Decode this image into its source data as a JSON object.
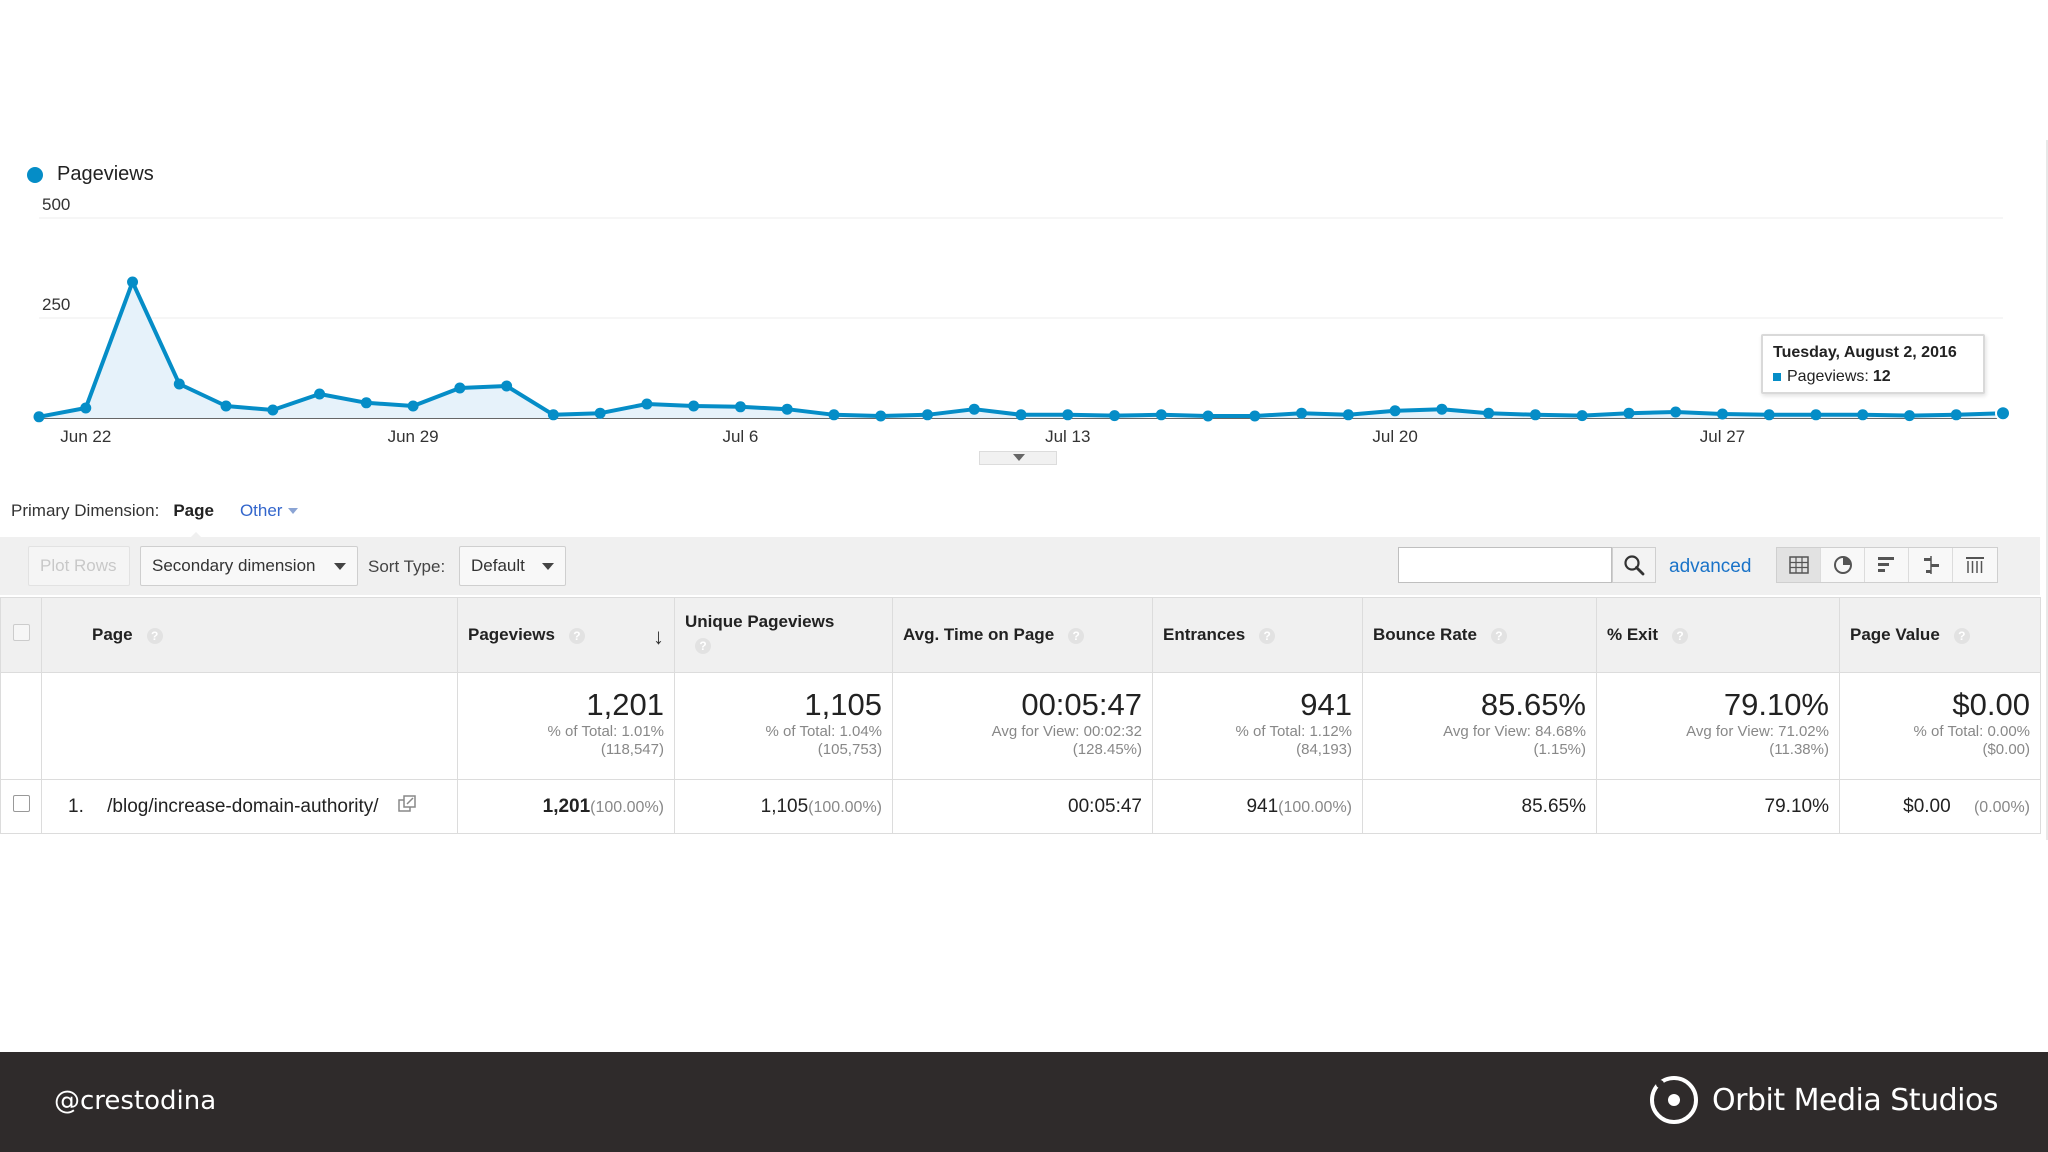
{
  "legend": {
    "series_name": "Pageviews",
    "color": "#058dc7"
  },
  "chart_data": {
    "type": "line",
    "title": "",
    "series": [
      {
        "name": "Pageviews",
        "values": [
          3,
          25,
          340,
          85,
          30,
          20,
          60,
          38,
          30,
          75,
          80,
          8,
          12,
          35,
          30,
          28,
          22,
          8,
          5,
          8,
          22,
          8,
          8,
          6,
          8,
          5,
          5,
          12,
          8,
          18,
          22,
          12,
          8,
          6,
          12,
          15,
          10,
          8,
          8,
          8,
          6,
          8,
          12
        ]
      }
    ],
    "x_start": "2016-06-21",
    "x_end": "2016-08-02",
    "x_tick_labels": [
      "Jun 22",
      "Jun 29",
      "Jul 6",
      "Jul 13",
      "Jul 20",
      "Jul 27"
    ],
    "y_tick_labels": [
      "500",
      "250"
    ],
    "ylim": [
      0,
      500
    ],
    "grid": true,
    "area_fill": true
  },
  "tooltip": {
    "date": "Tuesday, August 2, 2016",
    "label": "Pageviews:",
    "value": "12"
  },
  "primary_dimension": {
    "label": "Primary Dimension:",
    "selected": "Page",
    "other": "Other"
  },
  "toolbar": {
    "plot_rows": "Plot Rows",
    "secondary_dimension": "Secondary dimension",
    "sort_type_label": "Sort Type:",
    "sort_type_value": "Default",
    "search_value": "",
    "advanced": "advanced"
  },
  "table": {
    "columns": {
      "page": "Page",
      "pageviews": "Pageviews",
      "unique": "Unique Pageviews",
      "avg_time": "Avg. Time on Page",
      "entrances": "Entrances",
      "bounce": "Bounce Rate",
      "exit": "% Exit",
      "value": "Page Value"
    },
    "totals": {
      "pageviews": {
        "big": "1,201",
        "line1": "% of Total: 1.01%",
        "line2": "(118,547)"
      },
      "unique": {
        "big": "1,105",
        "line1": "% of Total: 1.04%",
        "line2": "(105,753)"
      },
      "avg_time": {
        "big": "00:05:47",
        "line1": "Avg for View: 00:02:32",
        "line2": "(128.45%)"
      },
      "entrances": {
        "big": "941",
        "line1": "% of Total: 1.12%",
        "line2": "(84,193)"
      },
      "bounce": {
        "big": "85.65%",
        "line1": "Avg for View: 84.68%",
        "line2": "(1.15%)"
      },
      "exit": {
        "big": "79.10%",
        "line1": "Avg for View: 71.02%",
        "line2": "(11.38%)"
      },
      "value": {
        "big": "$0.00",
        "line1": "% of Total: 0.00%",
        "line2": "($0.00)"
      }
    },
    "rows": [
      {
        "index": "1.",
        "page": "/blog/increase-domain-authority/",
        "pageviews": "1,201",
        "pageviews_pct": "(100.00%)",
        "unique": "1,105",
        "unique_pct": "(100.00%)",
        "avg_time": "00:05:47",
        "entrances": "941",
        "entrances_pct": "(100.00%)",
        "bounce": "85.65%",
        "exit": "79.10%",
        "value": "$0.00",
        "value_pct": "(0.00%)"
      }
    ]
  },
  "footer": {
    "handle": "@crestodina",
    "brand": "Orbit Media Studios"
  }
}
